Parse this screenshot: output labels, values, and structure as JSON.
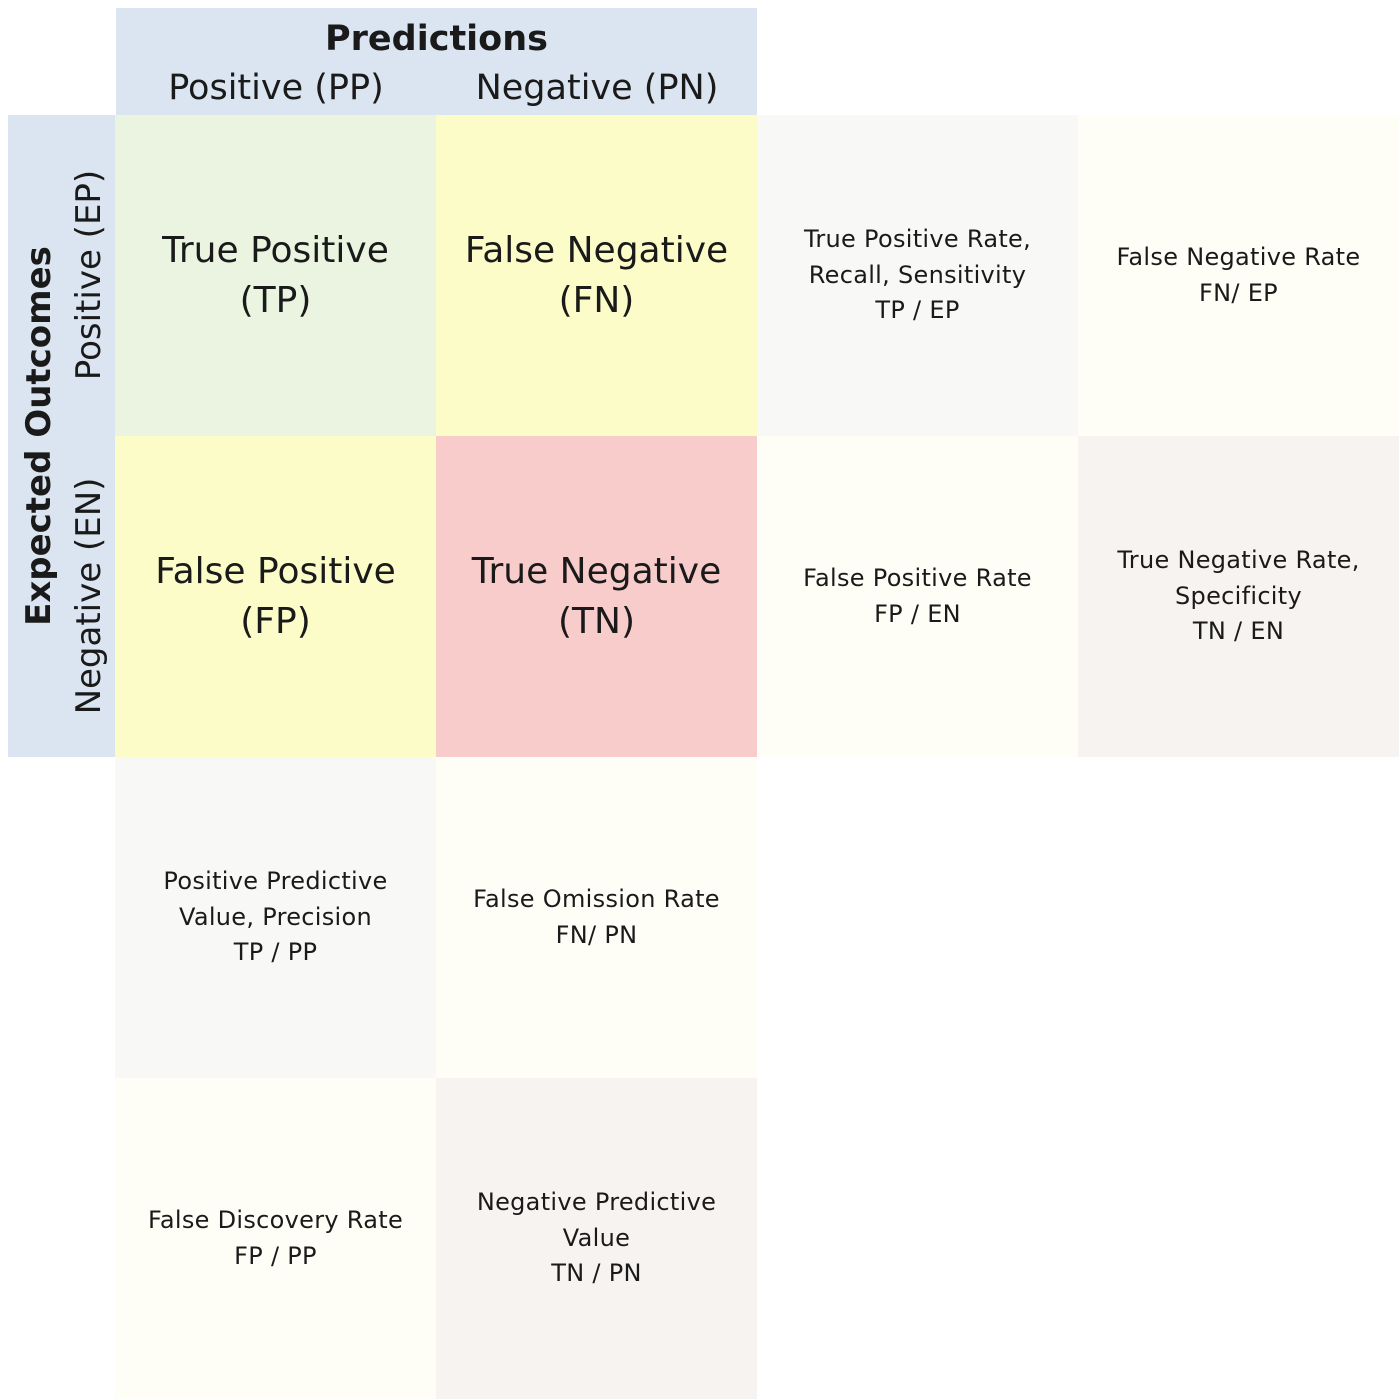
{
  "header": {
    "title": "Predictions",
    "col_positive": "Positive (PP)",
    "col_negative": "Negative (PN)"
  },
  "side": {
    "title": "Expected Outcomes",
    "row_positive": "Positive (EP)",
    "row_negative": "Negative (EN)"
  },
  "matrix": {
    "tp": {
      "line1": "True Positive",
      "line2": "(TP)"
    },
    "fn": {
      "line1": "False Negative",
      "line2": "(FN)"
    },
    "fp": {
      "line1": "False Positive",
      "line2": "(FP)"
    },
    "tn": {
      "line1": "True Negative",
      "line2": "(TN)"
    }
  },
  "metrics": {
    "tpr": {
      "line1": "True Positive Rate,",
      "line2": "Recall, Sensitivity",
      "formula": "TP / EP"
    },
    "fnr": {
      "line1": "False Negative Rate",
      "formula": "FN/ EP"
    },
    "fpr": {
      "line1": "False Positive Rate",
      "formula": "FP / EN"
    },
    "tnr": {
      "line1": "True Negative Rate,",
      "line2": "Specificity",
      "formula": "TN / EN"
    },
    "ppv": {
      "line1": "Positive Predictive",
      "line2": "Value, Precision",
      "formula": "TP / PP"
    },
    "for": {
      "line1": "False Omission Rate",
      "formula": "FN/ PN"
    },
    "fdr": {
      "line1": "False Discovery Rate",
      "formula": "FP / PP"
    },
    "npv": {
      "line1": "Negative Predictive",
      "line2": "Value",
      "formula": "TN / PN"
    }
  }
}
